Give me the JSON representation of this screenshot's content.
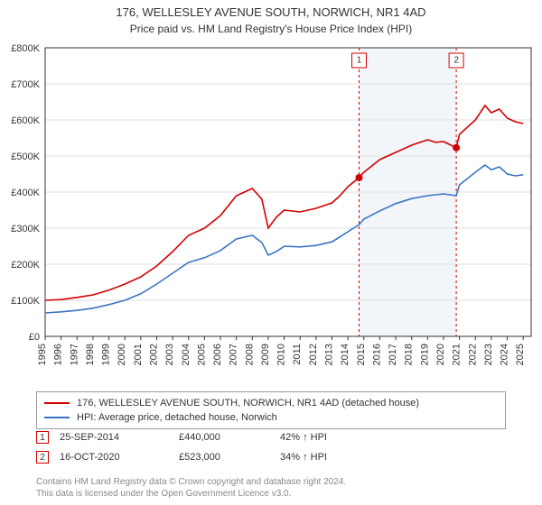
{
  "title": "176, WELLESLEY AVENUE SOUTH, NORWICH, NR1 4AD",
  "subtitle": "Price paid vs. HM Land Registry's House Price Index (HPI)",
  "chart": {
    "type": "line",
    "background_color": "#ffffff",
    "grid_color": "#dddddd",
    "axis_color": "#333333",
    "shaded_band": {
      "from_year": 2014.7,
      "to_year": 2020.8,
      "fill": "#f2f6fb"
    },
    "ylim": [
      0,
      800000
    ],
    "ytick_step": 100000,
    "ytick_labels": [
      "£0",
      "£100K",
      "£200K",
      "£300K",
      "£400K",
      "£500K",
      "£600K",
      "£700K",
      "£800K"
    ],
    "xlim": [
      1995,
      2025.5
    ],
    "xtick_years": [
      1995,
      1996,
      1997,
      1998,
      1999,
      2000,
      2001,
      2002,
      2003,
      2004,
      2005,
      2006,
      2007,
      2008,
      2009,
      2010,
      2011,
      2012,
      2013,
      2014,
      2015,
      2016,
      2017,
      2018,
      2019,
      2020,
      2021,
      2022,
      2023,
      2024,
      2025
    ],
    "label_fontsize": 11,
    "series": [
      {
        "name": "property",
        "label": "176, WELLESLEY AVENUE SOUTH, NORWICH, NR1 4AD (detached house)",
        "color": "#d40000",
        "line_width": 1.6,
        "points": [
          [
            1995,
            100000
          ],
          [
            1996,
            102000
          ],
          [
            1997,
            108000
          ],
          [
            1998,
            115000
          ],
          [
            1999,
            128000
          ],
          [
            2000,
            145000
          ],
          [
            2001,
            165000
          ],
          [
            2002,
            195000
          ],
          [
            2003,
            235000
          ],
          [
            2004,
            280000
          ],
          [
            2005,
            300000
          ],
          [
            2006,
            335000
          ],
          [
            2007,
            390000
          ],
          [
            2008,
            410000
          ],
          [
            2008.6,
            380000
          ],
          [
            2009,
            300000
          ],
          [
            2009.5,
            330000
          ],
          [
            2010,
            350000
          ],
          [
            2011,
            345000
          ],
          [
            2012,
            355000
          ],
          [
            2013,
            370000
          ],
          [
            2013.5,
            390000
          ],
          [
            2014,
            415000
          ],
          [
            2014.7,
            440000
          ],
          [
            2015,
            455000
          ],
          [
            2016,
            490000
          ],
          [
            2017,
            510000
          ],
          [
            2018,
            530000
          ],
          [
            2019,
            545000
          ],
          [
            2019.5,
            538000
          ],
          [
            2020,
            540000
          ],
          [
            2020.8,
            523000
          ],
          [
            2021,
            560000
          ],
          [
            2022,
            600000
          ],
          [
            2022.6,
            640000
          ],
          [
            2023,
            620000
          ],
          [
            2023.5,
            630000
          ],
          [
            2024,
            605000
          ],
          [
            2024.5,
            595000
          ],
          [
            2025,
            590000
          ]
        ]
      },
      {
        "name": "hpi",
        "label": "HPI: Average price, detached house, Norwich",
        "color": "#3a74c4",
        "line_width": 1.6,
        "points": [
          [
            1995,
            65000
          ],
          [
            1996,
            68000
          ],
          [
            1997,
            72000
          ],
          [
            1998,
            78000
          ],
          [
            1999,
            88000
          ],
          [
            2000,
            100000
          ],
          [
            2001,
            118000
          ],
          [
            2002,
            145000
          ],
          [
            2003,
            175000
          ],
          [
            2004,
            205000
          ],
          [
            2005,
            218000
          ],
          [
            2006,
            238000
          ],
          [
            2007,
            270000
          ],
          [
            2008,
            280000
          ],
          [
            2008.6,
            260000
          ],
          [
            2009,
            225000
          ],
          [
            2009.5,
            235000
          ],
          [
            2010,
            250000
          ],
          [
            2011,
            248000
          ],
          [
            2012,
            252000
          ],
          [
            2013,
            262000
          ],
          [
            2014,
            290000
          ],
          [
            2014.7,
            310000
          ],
          [
            2015,
            325000
          ],
          [
            2016,
            348000
          ],
          [
            2017,
            368000
          ],
          [
            2018,
            382000
          ],
          [
            2019,
            390000
          ],
          [
            2020,
            395000
          ],
          [
            2020.8,
            390000
          ],
          [
            2021,
            420000
          ],
          [
            2022,
            455000
          ],
          [
            2022.6,
            475000
          ],
          [
            2023,
            462000
          ],
          [
            2023.5,
            470000
          ],
          [
            2024,
            450000
          ],
          [
            2024.5,
            445000
          ],
          [
            2025,
            448000
          ]
        ]
      }
    ],
    "markers": [
      {
        "idx": "1",
        "year": 2014.7,
        "value": 440000,
        "color": "#d40000",
        "dot_color": "#d40000"
      },
      {
        "idx": "2",
        "year": 2020.8,
        "value": 523000,
        "color": "#d40000",
        "dot_color": "#d40000"
      }
    ]
  },
  "legend": {
    "border_color": "#999999",
    "items": [
      {
        "color": "#d40000",
        "label": "176, WELLESLEY AVENUE SOUTH, NORWICH, NR1 4AD (detached house)"
      },
      {
        "color": "#3a74c4",
        "label": "HPI: Average price, detached house, Norwich"
      }
    ]
  },
  "transactions": [
    {
      "idx": "1",
      "border_color": "#d40000",
      "date": "25-SEP-2014",
      "price": "£440,000",
      "pct": "42% ↑ HPI"
    },
    {
      "idx": "2",
      "border_color": "#d40000",
      "date": "16-OCT-2020",
      "price": "£523,000",
      "pct": "34% ↑ HPI"
    }
  ],
  "footer_line1": "Contains HM Land Registry data © Crown copyright and database right 2024.",
  "footer_line2": "This data is licensed under the Open Government Licence v3.0."
}
